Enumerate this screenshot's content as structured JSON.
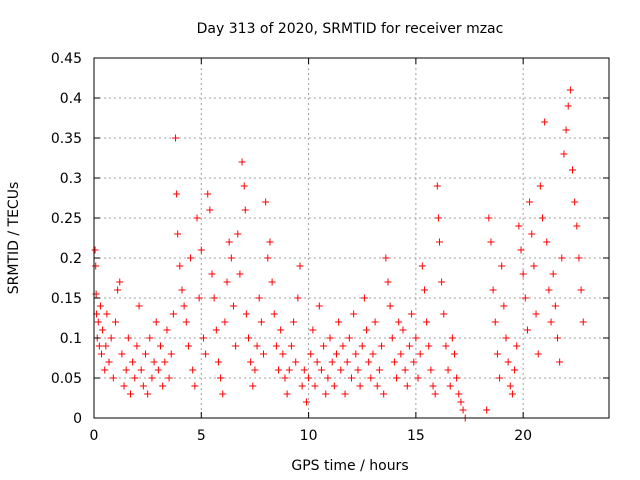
{
  "chart_data": {
    "type": "scatter",
    "title": "Day 313 of 2020, SRMTID for receiver mzac",
    "xlabel": "GPS time / hours",
    "ylabel": "SRMTID / TECUs",
    "xlim": [
      0,
      24
    ],
    "ylim": [
      0,
      0.45
    ],
    "xticks": [
      0,
      5,
      10,
      15,
      20
    ],
    "xtick_labels": [
      "0",
      "5",
      "10",
      "15",
      "20"
    ],
    "yticks": [
      0,
      0.05,
      0.1,
      0.15,
      0.2,
      0.25,
      0.3,
      0.35,
      0.4,
      0.45
    ],
    "ytick_labels": [
      "0",
      "0.05",
      "0.1",
      "0.15",
      "0.2",
      "0.25",
      "0.3",
      "0.35",
      "0.4",
      "0.45"
    ],
    "grid": true,
    "marker": "+",
    "marker_color": "#ff0000",
    "series": [
      {
        "name": "SRMTID",
        "color": "#ff0000",
        "points": [
          [
            0.05,
            0.21
          ],
          [
            0.08,
            0.19
          ],
          [
            0.1,
            0.155
          ],
          [
            0.12,
            0.13
          ],
          [
            0.15,
            0.1
          ],
          [
            0.2,
            0.12
          ],
          [
            0.25,
            0.09
          ],
          [
            0.3,
            0.14
          ],
          [
            0.35,
            0.08
          ],
          [
            0.4,
            0.11
          ],
          [
            0.5,
            0.06
          ],
          [
            0.55,
            0.09
          ],
          [
            0.6,
            0.13
          ],
          [
            0.7,
            0.07
          ],
          [
            0.8,
            0.1
          ],
          [
            0.9,
            0.05
          ],
          [
            1.0,
            0.12
          ],
          [
            1.1,
            0.16
          ],
          [
            1.2,
            0.17
          ],
          [
            1.3,
            0.08
          ],
          [
            1.4,
            0.04
          ],
          [
            1.5,
            0.06
          ],
          [
            1.6,
            0.1
          ],
          [
            1.7,
            0.03
          ],
          [
            1.8,
            0.07
          ],
          [
            1.9,
            0.05
          ],
          [
            2.0,
            0.09
          ],
          [
            2.1,
            0.14
          ],
          [
            2.2,
            0.06
          ],
          [
            2.3,
            0.04
          ],
          [
            2.4,
            0.08
          ],
          [
            2.5,
            0.03
          ],
          [
            2.6,
            0.1
          ],
          [
            2.7,
            0.05
          ],
          [
            2.8,
            0.07
          ],
          [
            2.9,
            0.12
          ],
          [
            3.0,
            0.06
          ],
          [
            3.1,
            0.09
          ],
          [
            3.2,
            0.04
          ],
          [
            3.3,
            0.07
          ],
          [
            3.4,
            0.11
          ],
          [
            3.5,
            0.05
          ],
          [
            3.6,
            0.08
          ],
          [
            3.7,
            0.13
          ],
          [
            3.8,
            0.35
          ],
          [
            3.85,
            0.28
          ],
          [
            3.9,
            0.23
          ],
          [
            4.0,
            0.19
          ],
          [
            4.1,
            0.16
          ],
          [
            4.2,
            0.14
          ],
          [
            4.3,
            0.12
          ],
          [
            4.4,
            0.09
          ],
          [
            4.5,
            0.2
          ],
          [
            4.6,
            0.06
          ],
          [
            4.7,
            0.04
          ],
          [
            4.8,
            0.25
          ],
          [
            4.9,
            0.15
          ],
          [
            5.0,
            0.21
          ],
          [
            5.1,
            0.1
          ],
          [
            5.2,
            0.08
          ],
          [
            5.3,
            0.28
          ],
          [
            5.4,
            0.26
          ],
          [
            5.5,
            0.18
          ],
          [
            5.6,
            0.15
          ],
          [
            5.7,
            0.11
          ],
          [
            5.8,
            0.07
          ],
          [
            5.9,
            0.05
          ],
          [
            6.0,
            0.03
          ],
          [
            6.1,
            0.12
          ],
          [
            6.2,
            0.17
          ],
          [
            6.3,
            0.22
          ],
          [
            6.4,
            0.2
          ],
          [
            6.5,
            0.14
          ],
          [
            6.6,
            0.09
          ],
          [
            6.7,
            0.23
          ],
          [
            6.8,
            0.18
          ],
          [
            6.9,
            0.32
          ],
          [
            7.0,
            0.29
          ],
          [
            7.05,
            0.26
          ],
          [
            7.1,
            0.13
          ],
          [
            7.2,
            0.1
          ],
          [
            7.3,
            0.07
          ],
          [
            7.4,
            0.04
          ],
          [
            7.5,
            0.06
          ],
          [
            7.6,
            0.09
          ],
          [
            7.7,
            0.15
          ],
          [
            7.8,
            0.12
          ],
          [
            7.9,
            0.08
          ],
          [
            8.0,
            0.27
          ],
          [
            8.1,
            0.2
          ],
          [
            8.2,
            0.22
          ],
          [
            8.3,
            0.17
          ],
          [
            8.4,
            0.13
          ],
          [
            8.5,
            0.09
          ],
          [
            8.6,
            0.06
          ],
          [
            8.7,
            0.11
          ],
          [
            8.8,
            0.08
          ],
          [
            8.9,
            0.05
          ],
          [
            9.0,
            0.03
          ],
          [
            9.1,
            0.06
          ],
          [
            9.2,
            0.09
          ],
          [
            9.3,
            0.12
          ],
          [
            9.4,
            0.07
          ],
          [
            9.5,
            0.15
          ],
          [
            9.6,
            0.19
          ],
          [
            9.7,
            0.04
          ],
          [
            9.8,
            0.06
          ],
          [
            9.9,
            0.02
          ],
          [
            10.0,
            0.05
          ],
          [
            10.1,
            0.08
          ],
          [
            10.2,
            0.11
          ],
          [
            10.3,
            0.04
          ],
          [
            10.4,
            0.07
          ],
          [
            10.5,
            0.14
          ],
          [
            10.6,
            0.06
          ],
          [
            10.7,
            0.09
          ],
          [
            10.8,
            0.03
          ],
          [
            10.9,
            0.05
          ],
          [
            11.0,
            0.1
          ],
          [
            11.1,
            0.07
          ],
          [
            11.2,
            0.04
          ],
          [
            11.3,
            0.08
          ],
          [
            11.4,
            0.12
          ],
          [
            11.5,
            0.06
          ],
          [
            11.6,
            0.09
          ],
          [
            11.7,
            0.03
          ],
          [
            11.8,
            0.07
          ],
          [
            11.9,
            0.1
          ],
          [
            12.0,
            0.05
          ],
          [
            12.1,
            0.13
          ],
          [
            12.2,
            0.08
          ],
          [
            12.3,
            0.06
          ],
          [
            12.4,
            0.04
          ],
          [
            12.5,
            0.09
          ],
          [
            12.6,
            0.15
          ],
          [
            12.7,
            0.11
          ],
          [
            12.8,
            0.07
          ],
          [
            12.9,
            0.05
          ],
          [
            13.0,
            0.08
          ],
          [
            13.1,
            0.12
          ],
          [
            13.2,
            0.04
          ],
          [
            13.3,
            0.06
          ],
          [
            13.4,
            0.09
          ],
          [
            13.5,
            0.03
          ],
          [
            13.6,
            0.2
          ],
          [
            13.7,
            0.17
          ],
          [
            13.8,
            0.14
          ],
          [
            13.9,
            0.1
          ],
          [
            14.0,
            0.07
          ],
          [
            14.1,
            0.05
          ],
          [
            14.2,
            0.12
          ],
          [
            14.3,
            0.08
          ],
          [
            14.4,
            0.11
          ],
          [
            14.5,
            0.06
          ],
          [
            14.6,
            0.04
          ],
          [
            14.7,
            0.09
          ],
          [
            14.8,
            0.13
          ],
          [
            14.9,
            0.07
          ],
          [
            15.0,
            0.1
          ],
          [
            15.1,
            0.05
          ],
          [
            15.2,
            0.08
          ],
          [
            15.3,
            0.19
          ],
          [
            15.4,
            0.16
          ],
          [
            15.5,
            0.12
          ],
          [
            15.6,
            0.09
          ],
          [
            15.7,
            0.06
          ],
          [
            15.8,
            0.04
          ],
          [
            15.9,
            0.03
          ],
          [
            16.0,
            0.29
          ],
          [
            16.05,
            0.25
          ],
          [
            16.1,
            0.22
          ],
          [
            16.2,
            0.17
          ],
          [
            16.3,
            0.13
          ],
          [
            16.4,
            0.09
          ],
          [
            16.5,
            0.06
          ],
          [
            16.6,
            0.04
          ],
          [
            16.7,
            0.1
          ],
          [
            16.8,
            0.08
          ],
          [
            16.9,
            0.05
          ],
          [
            17.0,
            0.03
          ],
          [
            17.1,
            0.02
          ],
          [
            17.2,
            0.01
          ],
          [
            17.3,
            0.0
          ],
          [
            18.3,
            0.01
          ],
          [
            18.4,
            0.25
          ],
          [
            18.5,
            0.22
          ],
          [
            18.6,
            0.16
          ],
          [
            18.7,
            0.12
          ],
          [
            18.8,
            0.08
          ],
          [
            18.9,
            0.05
          ],
          [
            19.0,
            0.19
          ],
          [
            19.1,
            0.14
          ],
          [
            19.2,
            0.1
          ],
          [
            19.3,
            0.07
          ],
          [
            19.4,
            0.04
          ],
          [
            19.5,
            0.03
          ],
          [
            19.6,
            0.06
          ],
          [
            19.7,
            0.09
          ],
          [
            19.8,
            0.24
          ],
          [
            19.9,
            0.21
          ],
          [
            20.0,
            0.18
          ],
          [
            20.1,
            0.15
          ],
          [
            20.2,
            0.11
          ],
          [
            20.3,
            0.27
          ],
          [
            20.4,
            0.23
          ],
          [
            20.5,
            0.19
          ],
          [
            20.6,
            0.13
          ],
          [
            20.7,
            0.08
          ],
          [
            20.8,
            0.29
          ],
          [
            20.9,
            0.25
          ],
          [
            21.0,
            0.37
          ],
          [
            21.1,
            0.22
          ],
          [
            21.2,
            0.16
          ],
          [
            21.3,
            0.12
          ],
          [
            21.4,
            0.18
          ],
          [
            21.5,
            0.14
          ],
          [
            21.6,
            0.1
          ],
          [
            21.7,
            0.07
          ],
          [
            21.8,
            0.2
          ],
          [
            21.9,
            0.33
          ],
          [
            22.0,
            0.36
          ],
          [
            22.1,
            0.39
          ],
          [
            22.2,
            0.41
          ],
          [
            22.3,
            0.31
          ],
          [
            22.4,
            0.27
          ],
          [
            22.5,
            0.24
          ],
          [
            22.6,
            0.2
          ],
          [
            22.7,
            0.16
          ],
          [
            22.8,
            0.12
          ]
        ]
      }
    ]
  }
}
